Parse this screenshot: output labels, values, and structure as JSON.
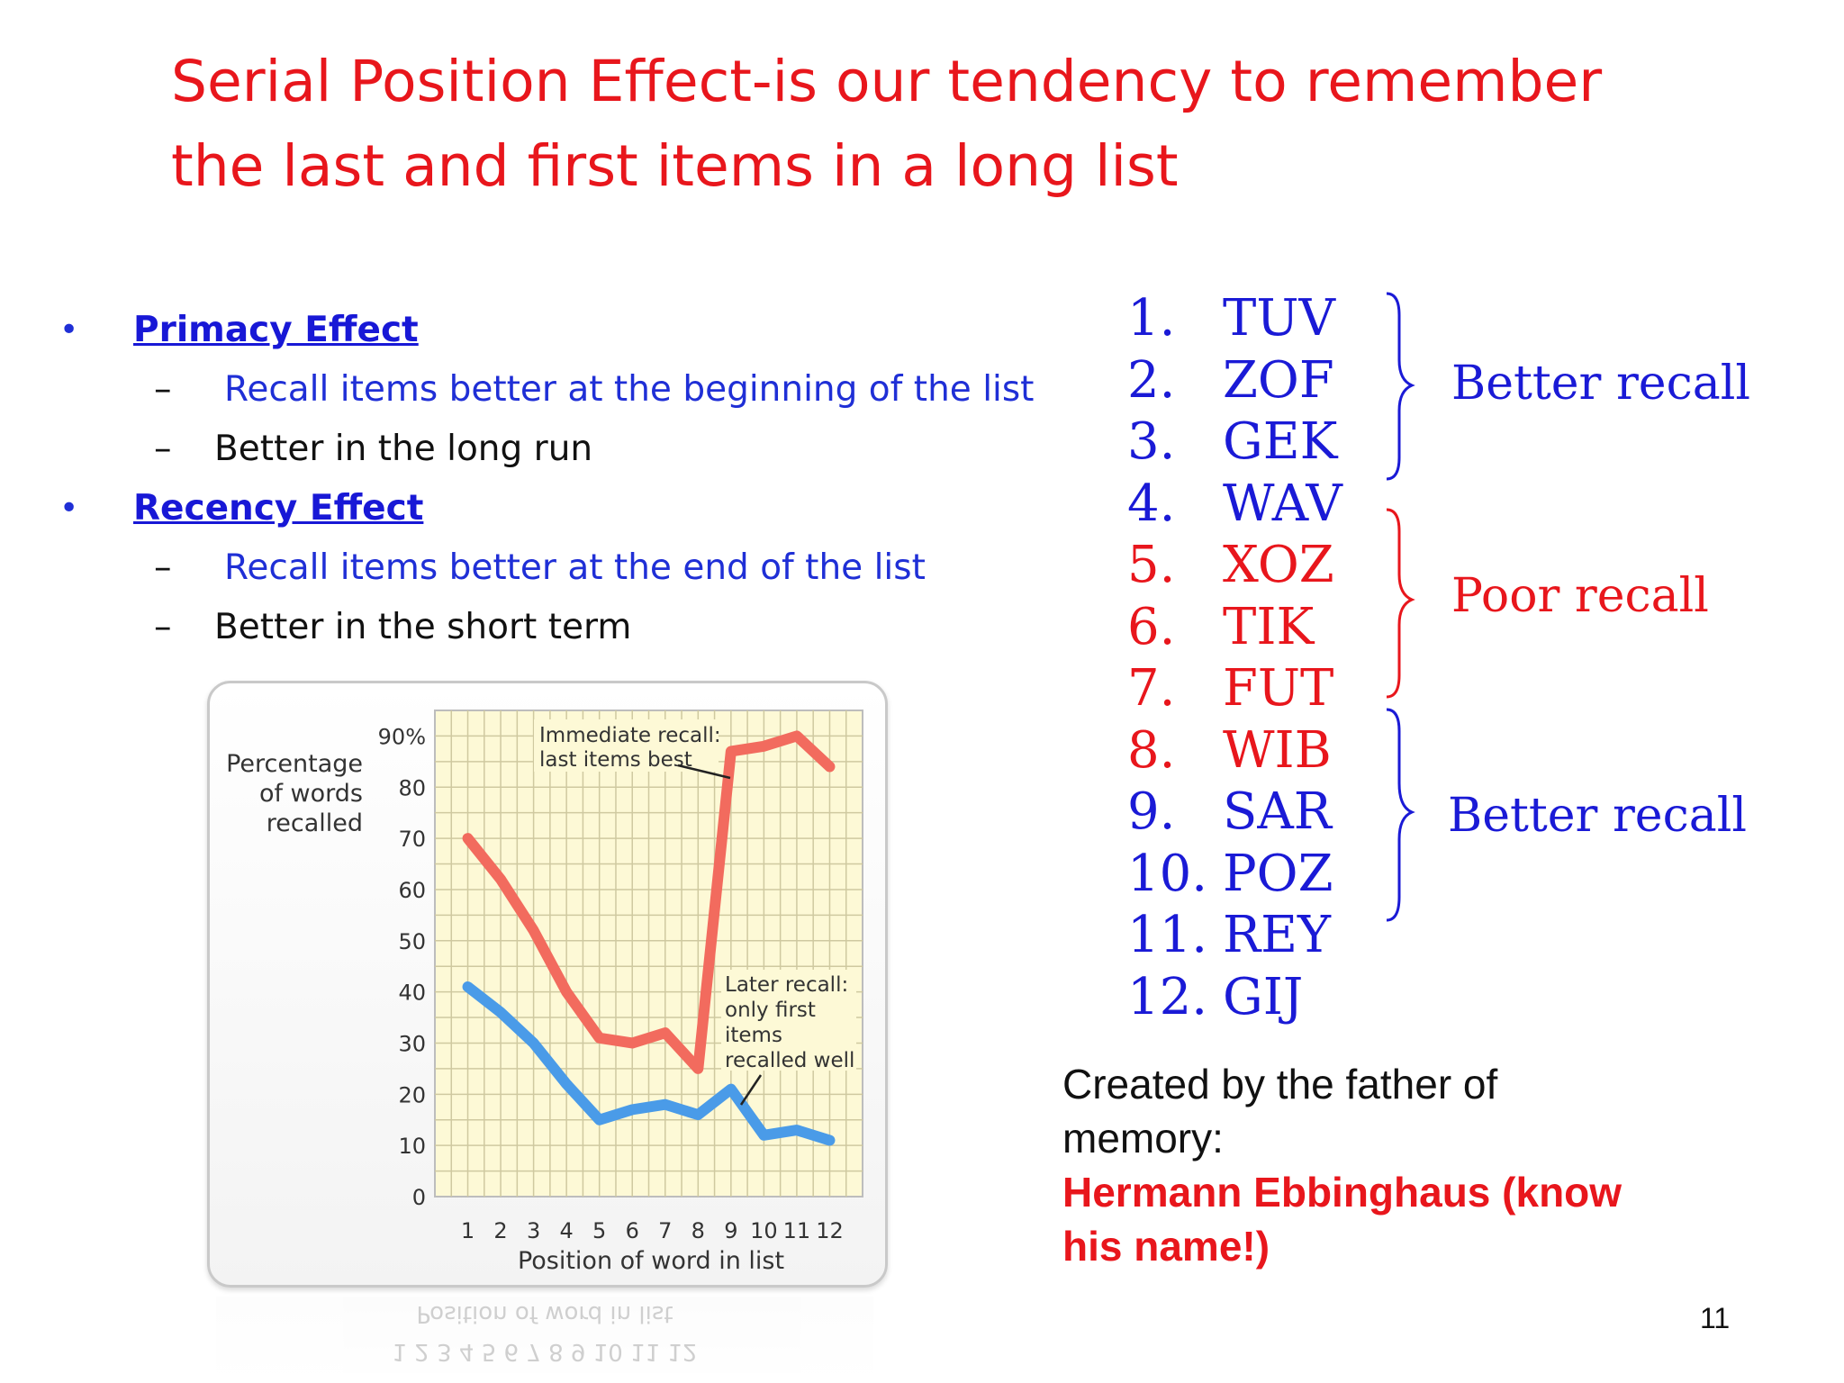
{
  "slide": {
    "title_line1": "Serial Position Effect-is our tendency to remember",
    "title_line2": "the last and first items in a long list",
    "page_number": "11"
  },
  "bullets": [
    {
      "heading": "Primacy Effect",
      "subs": [
        {
          "text": "Recall items better at the beginning of the list",
          "color": "#1f2fd6"
        },
        {
          "text": "Better in the long run",
          "color": "#111111"
        }
      ]
    },
    {
      "heading": "Recency Effect",
      "subs": [
        {
          "text": "Recall items better at the end of the list",
          "color": "#1f2fd6"
        },
        {
          "text": "Better in the short term",
          "color": "#111111"
        }
      ]
    }
  ],
  "symbols": {
    "bullet": "•",
    "dash": "–"
  },
  "word_list": [
    {
      "num": "1.",
      "word": "TUV",
      "color": "blue"
    },
    {
      "num": "2.",
      "word": "ZOF",
      "color": "blue"
    },
    {
      "num": "3.",
      "word": "GEK",
      "color": "blue"
    },
    {
      "num": "4.",
      "word": "WAV",
      "color": "blue"
    },
    {
      "num": "5.",
      "word": "XOZ",
      "color": "red"
    },
    {
      "num": "6.",
      "word": "TIK",
      "color": "red"
    },
    {
      "num": "7.",
      "word": "FUT",
      "color": "red"
    },
    {
      "num": "8.",
      "word": "WIB",
      "color": "red"
    },
    {
      "num": "9.",
      "word": "SAR",
      "color": "blue"
    },
    {
      "num": "10.",
      "word": "POZ",
      "color": "blue"
    },
    {
      "num": "11.",
      "word": "REY",
      "color": "blue"
    },
    {
      "num": "12.",
      "word": "GIJ",
      "color": "blue"
    }
  ],
  "recall_groups": [
    {
      "label": "Better recall",
      "color": "#1a1ad6"
    },
    {
      "label": "Poor recall",
      "color": "#e8161c"
    },
    {
      "label": "Better recall",
      "color": "#1a1ad6"
    }
  ],
  "credit": {
    "line1": "Created by the father of",
    "line2": "memory:",
    "name_line1": "Hermann Ebbinghaus (know",
    "name_line2": "his name!)"
  },
  "chart_data": {
    "type": "line",
    "ylabel_lines": [
      "Percentage",
      "of words",
      "recalled"
    ],
    "xlabel": "Position of word in list",
    "x": [
      1,
      2,
      3,
      4,
      5,
      6,
      7,
      8,
      9,
      10,
      11,
      12
    ],
    "y_ticks": [
      "0",
      "10",
      "20",
      "30",
      "40",
      "50",
      "60",
      "70",
      "80",
      "90%"
    ],
    "ylim": [
      0,
      95
    ],
    "grid": true,
    "series": [
      {
        "values": [
          70,
          62,
          52,
          40,
          31,
          30,
          32,
          25,
          87,
          88,
          90,
          84
        ],
        "color": "#f26b5e"
      },
      {
        "values": [
          41,
          36,
          30,
          22,
          15,
          17,
          18,
          16,
          21,
          12,
          13,
          11
        ],
        "color": "#4a9be8"
      }
    ],
    "annotations": [
      {
        "lines": [
          "Immediate recall:",
          "last items best"
        ]
      },
      {
        "lines": [
          "Later recall:",
          "only first",
          "items",
          "recalled well"
        ]
      }
    ],
    "reflection": {
      "xlabel": "Position of word in list",
      "ticks": "1  2  3  4  5  6  7  8  9  10 11 12"
    }
  }
}
